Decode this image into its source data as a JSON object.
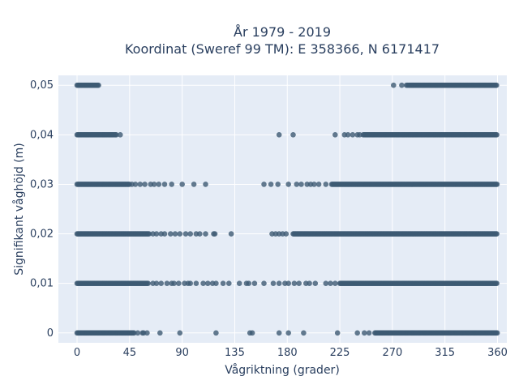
{
  "chart_data": {
    "type": "scatter",
    "title_line1": "År 1979 - 2019",
    "title_line2": "Koordinat (Sweref 99 TM): E 358366, N 6171417",
    "xlabel": "Vågriktning (grader)",
    "ylabel": "Signifikant våghöjd (m)",
    "xlim": [
      -16,
      368
    ],
    "ylim": [
      -0.002,
      0.052
    ],
    "xticks": [
      0,
      45,
      90,
      135,
      180,
      225,
      270,
      315,
      360
    ],
    "xtick_labels": [
      "0",
      "45",
      "90",
      "135",
      "180",
      "225",
      "270",
      "315",
      "360"
    ],
    "yticks": [
      0,
      0.01,
      0.02,
      0.03,
      0.04,
      0.05
    ],
    "ytick_labels": [
      "0",
      "0,01",
      "0,02",
      "0,03",
      "0,04",
      "0,05"
    ],
    "grid": true,
    "marker_color": "#3d5a73",
    "background_color": "#e5ecf6",
    "series": [
      {
        "y": 0.05,
        "dense_ranges": [
          [
            0,
            19
          ],
          [
            284,
            360
          ]
        ],
        "scattered_x": [
          271,
          278,
          282,
          283
        ]
      },
      {
        "y": 0.04,
        "dense_ranges": [
          [
            0,
            34
          ],
          [
            245,
            360
          ]
        ],
        "scattered_x": [
          37,
          173,
          185,
          221,
          229,
          232,
          236,
          240,
          242
        ]
      },
      {
        "y": 0.03,
        "dense_ranges": [
          [
            0,
            45
          ],
          [
            218,
            360
          ]
        ],
        "scattered_x": [
          47,
          50,
          54,
          58,
          63,
          66,
          70,
          75,
          81,
          90,
          100,
          110,
          160,
          166,
          172,
          181,
          188,
          192,
          197,
          200,
          203,
          207,
          213
        ]
      },
      {
        "y": 0.02,
        "dense_ranges": [
          [
            0,
            62
          ],
          [
            185,
            360
          ]
        ],
        "scattered_x": [
          65,
          68,
          72,
          75,
          80,
          84,
          88,
          93,
          97,
          102,
          105,
          110,
          117,
          118,
          132,
          167,
          170,
          173,
          176,
          179
        ]
      },
      {
        "y": 0.01,
        "dense_ranges": [
          [
            0,
            61
          ],
          [
            225,
            360
          ]
        ],
        "scattered_x": [
          65,
          68,
          72,
          77,
          81,
          83,
          87,
          92,
          95,
          97,
          102,
          108,
          112,
          116,
          119,
          125,
          130,
          139,
          145,
          147,
          152,
          160,
          168,
          173,
          178,
          181,
          186,
          190,
          196,
          199,
          204,
          213,
          217,
          221
        ]
      },
      {
        "y": 0,
        "dense_ranges": [
          [
            0,
            49
          ],
          [
            255,
            360
          ]
        ],
        "scattered_x": [
          52,
          56,
          57,
          60,
          71,
          88,
          119,
          148,
          150,
          173,
          181,
          194,
          223,
          240,
          246,
          250
        ]
      }
    ]
  }
}
